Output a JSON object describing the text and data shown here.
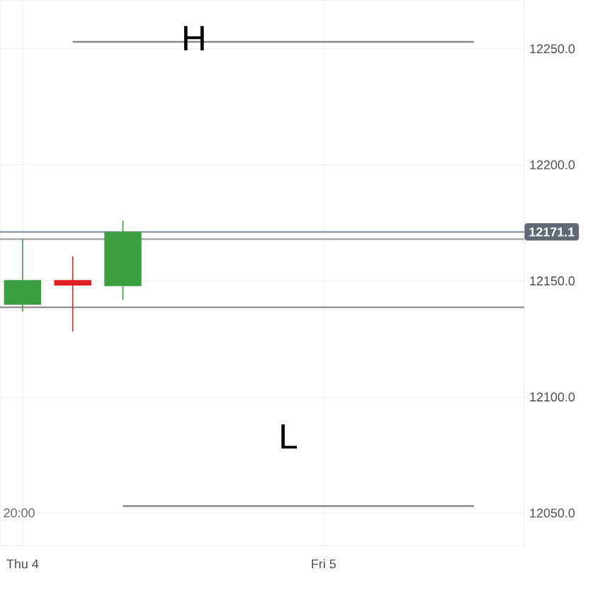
{
  "chart_data": {
    "type": "candlestick",
    "categories": [
      "Thu 4",
      null,
      null,
      null,
      null,
      null,
      "Fri 5",
      null,
      null,
      null
    ],
    "ohlc": [
      [
        12139.8,
        12168,
        12136.8,
        12150.4
      ],
      [
        12150.4,
        12160.6,
        12128.2,
        12148.0
      ],
      [
        12147.8,
        12176,
        12141.7,
        12171.1
      ],
      null,
      null,
      null,
      null,
      null,
      null,
      null
    ],
    "colors": [
      "#3a9f3e",
      "#e02020",
      "#3a9f3e",
      null,
      null,
      null,
      null,
      null,
      null,
      null
    ],
    "series": [
      {
        "type": "line",
        "color": "#888888",
        "values": [
          null,
          12253,
          12253,
          12253,
          12253,
          12253,
          12253,
          12253,
          12253,
          12253
        ]
      },
      {
        "type": "line",
        "color": "#888888",
        "values": [
          null,
          null,
          12053,
          12053,
          12053,
          12053,
          12053,
          12053,
          12053,
          12053
        ]
      }
    ],
    "ylim": [
      12036,
      12271
    ],
    "yticks": [
      {
        "value": 12050,
        "label": "12050.0"
      },
      {
        "value": 12100,
        "label": "12100.0"
      },
      {
        "value": 12150,
        "label": "12150.0"
      },
      {
        "value": 12200,
        "label": "12200.0"
      },
      {
        "value": 12250,
        "label": "12250.0"
      }
    ],
    "grid": true,
    "ref_lines": [
      {
        "axis": "y",
        "value": 12171.1,
        "label": "12171.1",
        "color": "#8a96a8"
      },
      {
        "axis": "y",
        "value": 12168,
        "color": "#aaaaaa"
      },
      {
        "axis": "y",
        "value": 12138.6,
        "color": "#999999"
      }
    ],
    "annotations": [
      "H",
      "L",
      "20:00"
    ]
  }
}
